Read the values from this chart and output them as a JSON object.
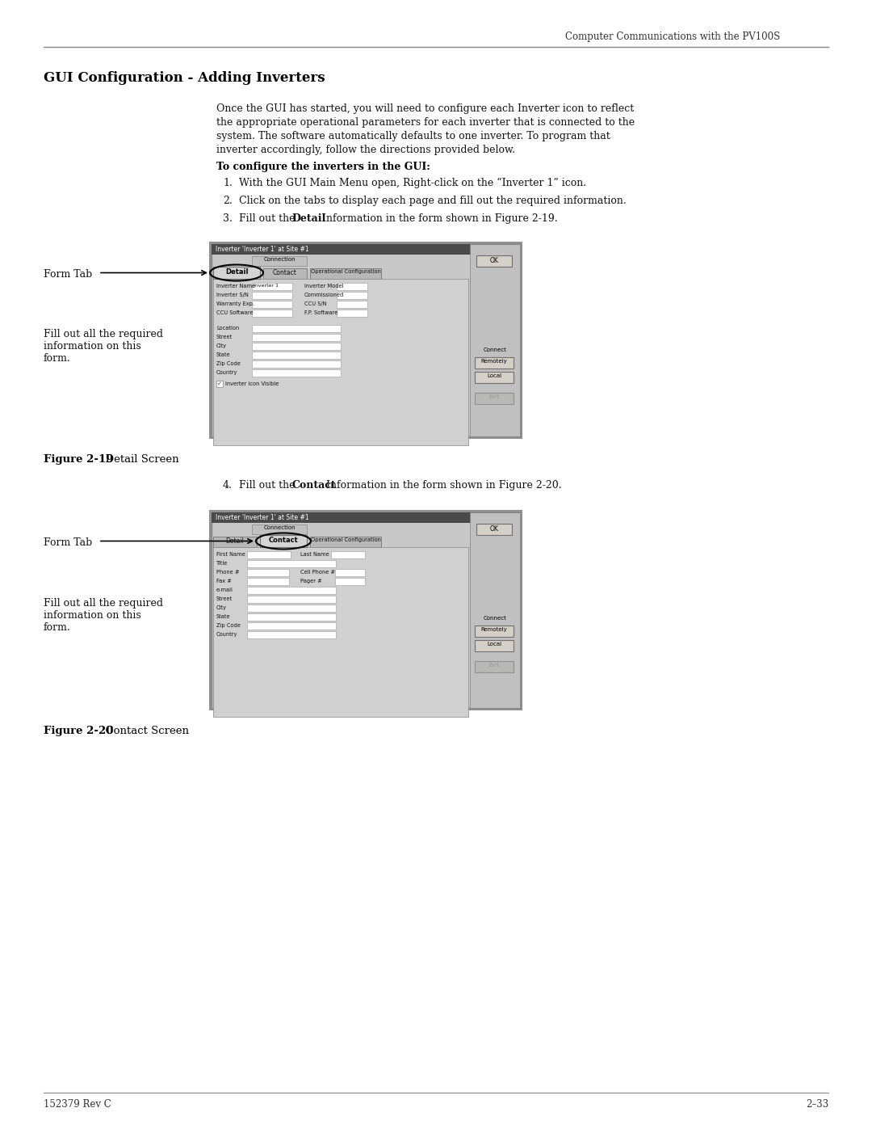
{
  "header_right": "Computer Communications with the PV100S",
  "section_title": "GUI Configuration - Adding Inverters",
  "body_line1": "Once the GUI has started, you will need to configure each Inverter icon to reflect",
  "body_line2": "the appropriate operational parameters for each inverter that is connected to the",
  "body_line3": "system. The software automatically defaults to one inverter. To program that",
  "body_line4": "inverter accordingly, follow the directions provided below.",
  "bold_heading": "To configure the inverters in the GUI:",
  "step1": "With the GUI Main Menu open, Right-click on the “Inverter 1” icon.",
  "step2": "Click on the tabs to display each page and fill out the required information.",
  "step3_pre": "Fill out the ",
  "step3_bold": "Detail",
  "step3_post": " Information in the form shown in Figure 2-19.",
  "step4_pre": "Fill out the ",
  "step4_bold": "Contact",
  "step4_post": " Information in the form shown in Figure 2-20.",
  "fig19_bold": "Figure 2-19",
  "fig19_normal": "  Detail Screen",
  "fig20_bold": "Figure 2-20",
  "fig20_normal": "  Contact Screen",
  "form_tab_label": "Form Tab",
  "fill_text_line1": "Fill out all the required",
  "fill_text_line2": "information on this",
  "fill_text_line3": "form.",
  "footer_left": "152379 Rev C",
  "footer_right": "2–33",
  "bg_color": "#ffffff"
}
